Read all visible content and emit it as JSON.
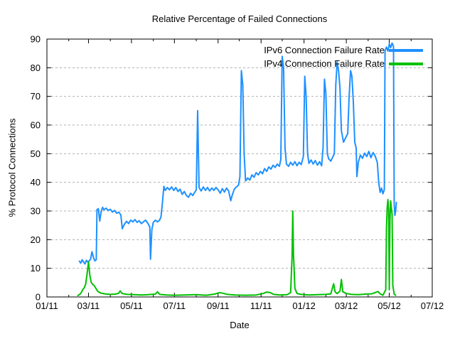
{
  "chart_data": {
    "type": "line",
    "title": "Relative Percentage of Failed Connections",
    "xlabel": "Date",
    "ylabel": "% Protocol Connections",
    "x_range": [
      "2011-01-01",
      "2012-07-01"
    ],
    "ylim": [
      0,
      90
    ],
    "y_ticks": [
      0,
      10,
      20,
      30,
      40,
      50,
      60,
      70,
      80,
      90
    ],
    "x_tick_labels": [
      "01/11",
      "03/11",
      "05/11",
      "07/11",
      "09/11",
      "11/11",
      "01/12",
      "03/12",
      "05/12",
      "07/12"
    ],
    "grid": "horizontal-dashed",
    "grid_color": "#b0b0b0",
    "legend_position": "top-right-inside",
    "series": [
      {
        "id": "ipv6",
        "name": "IPv6 Connection Failure Rate",
        "color": "#1e90ff",
        "points": [
          [
            "2011-02-16",
            12.5
          ],
          [
            "2011-02-18",
            11.8
          ],
          [
            "2011-02-20",
            13.0
          ],
          [
            "2011-02-22",
            12.2
          ],
          [
            "2011-02-24",
            11.5
          ],
          [
            "2011-02-26",
            12.8
          ],
          [
            "2011-02-28",
            12.2
          ],
          [
            "2011-03-02",
            12.6
          ],
          [
            "2011-03-04",
            13.2
          ],
          [
            "2011-03-06",
            15.8
          ],
          [
            "2011-03-08",
            13.8
          ],
          [
            "2011-03-10",
            12.6
          ],
          [
            "2011-03-12",
            13.0
          ],
          [
            "2011-03-13",
            30.5
          ],
          [
            "2011-03-15",
            30.8
          ],
          [
            "2011-03-17",
            26.5
          ],
          [
            "2011-03-19",
            29.8
          ],
          [
            "2011-03-21",
            31.3
          ],
          [
            "2011-03-23",
            30.4
          ],
          [
            "2011-03-26",
            31.0
          ],
          [
            "2011-03-29",
            30.2
          ],
          [
            "2011-04-01",
            30.6
          ],
          [
            "2011-04-04",
            29.6
          ],
          [
            "2011-04-07",
            30.2
          ],
          [
            "2011-04-10",
            29.2
          ],
          [
            "2011-04-13",
            29.6
          ],
          [
            "2011-04-16",
            28.6
          ],
          [
            "2011-04-18",
            23.8
          ],
          [
            "2011-04-21",
            25.4
          ],
          [
            "2011-04-24",
            26.4
          ],
          [
            "2011-04-27",
            25.6
          ],
          [
            "2011-04-30",
            26.8
          ],
          [
            "2011-05-03",
            26.2
          ],
          [
            "2011-05-06",
            27.0
          ],
          [
            "2011-05-09",
            26.0
          ],
          [
            "2011-05-12",
            26.6
          ],
          [
            "2011-05-15",
            25.6
          ],
          [
            "2011-05-18",
            26.2
          ],
          [
            "2011-05-21",
            26.8
          ],
          [
            "2011-05-24",
            25.8
          ],
          [
            "2011-05-27",
            24.5
          ],
          [
            "2011-05-28",
            13.2
          ],
          [
            "2011-05-30",
            23.5
          ],
          [
            "2011-06-01",
            26.0
          ],
          [
            "2011-06-04",
            26.8
          ],
          [
            "2011-06-07",
            26.2
          ],
          [
            "2011-06-10",
            26.8
          ],
          [
            "2011-06-12",
            28.0
          ],
          [
            "2011-06-14",
            33.0
          ],
          [
            "2011-06-16",
            38.6
          ],
          [
            "2011-06-18",
            37.2
          ],
          [
            "2011-06-21",
            38.2
          ],
          [
            "2011-06-24",
            37.4
          ],
          [
            "2011-06-27",
            38.4
          ],
          [
            "2011-06-30",
            37.2
          ],
          [
            "2011-07-03",
            38.2
          ],
          [
            "2011-07-06",
            36.8
          ],
          [
            "2011-07-09",
            37.6
          ],
          [
            "2011-07-12",
            35.8
          ],
          [
            "2011-07-15",
            36.8
          ],
          [
            "2011-07-18",
            35.4
          ],
          [
            "2011-07-21",
            34.8
          ],
          [
            "2011-07-24",
            36.2
          ],
          [
            "2011-07-27",
            35.4
          ],
          [
            "2011-07-30",
            36.6
          ],
          [
            "2011-08-01",
            37.4
          ],
          [
            "2011-08-03",
            65.0
          ],
          [
            "2011-08-05",
            38.2
          ],
          [
            "2011-08-08",
            37.0
          ],
          [
            "2011-08-11",
            38.4
          ],
          [
            "2011-08-14",
            37.2
          ],
          [
            "2011-08-17",
            38.2
          ],
          [
            "2011-08-20",
            37.0
          ],
          [
            "2011-08-23",
            38.0
          ],
          [
            "2011-08-26",
            37.2
          ],
          [
            "2011-08-29",
            38.2
          ],
          [
            "2011-09-01",
            37.4
          ],
          [
            "2011-09-04",
            36.2
          ],
          [
            "2011-09-07",
            37.8
          ],
          [
            "2011-09-10",
            36.6
          ],
          [
            "2011-09-13",
            38.0
          ],
          [
            "2011-09-16",
            37.0
          ],
          [
            "2011-09-19",
            33.6
          ],
          [
            "2011-09-21",
            35.5
          ],
          [
            "2011-09-24",
            37.6
          ],
          [
            "2011-09-27",
            38.4
          ],
          [
            "2011-09-30",
            39.0
          ],
          [
            "2011-10-02",
            42.0
          ],
          [
            "2011-10-04",
            79.0
          ],
          [
            "2011-10-06",
            74.0
          ],
          [
            "2011-10-08",
            50.0
          ],
          [
            "2011-10-10",
            40.5
          ],
          [
            "2011-10-13",
            41.5
          ],
          [
            "2011-10-16",
            40.8
          ],
          [
            "2011-10-19",
            42.6
          ],
          [
            "2011-10-22",
            41.8
          ],
          [
            "2011-10-25",
            43.4
          ],
          [
            "2011-10-28",
            42.6
          ],
          [
            "2011-10-31",
            43.8
          ],
          [
            "2011-11-03",
            43.0
          ],
          [
            "2011-11-06",
            44.8
          ],
          [
            "2011-11-09",
            43.8
          ],
          [
            "2011-11-12",
            45.4
          ],
          [
            "2011-11-15",
            44.6
          ],
          [
            "2011-11-18",
            46.0
          ],
          [
            "2011-11-21",
            45.2
          ],
          [
            "2011-11-24",
            46.4
          ],
          [
            "2011-11-27",
            45.6
          ],
          [
            "2011-11-29",
            48.0
          ],
          [
            "2011-12-01",
            84.0
          ],
          [
            "2011-12-03",
            80.0
          ],
          [
            "2011-12-05",
            52.0
          ],
          [
            "2011-12-07",
            46.4
          ],
          [
            "2011-12-10",
            45.6
          ],
          [
            "2011-12-13",
            47.0
          ],
          [
            "2011-12-16",
            46.0
          ],
          [
            "2011-12-19",
            47.2
          ],
          [
            "2011-12-22",
            45.8
          ],
          [
            "2011-12-25",
            47.0
          ],
          [
            "2011-12-28",
            46.2
          ],
          [
            "2011-12-31",
            49.0
          ],
          [
            "2012-01-02",
            77.0
          ],
          [
            "2012-01-04",
            70.0
          ],
          [
            "2012-01-06",
            50.0
          ],
          [
            "2012-01-08",
            46.6
          ],
          [
            "2012-01-11",
            47.8
          ],
          [
            "2012-01-14",
            46.4
          ],
          [
            "2012-01-17",
            47.6
          ],
          [
            "2012-01-20",
            46.0
          ],
          [
            "2012-01-23",
            47.2
          ],
          [
            "2012-01-26",
            45.8
          ],
          [
            "2012-01-28",
            52.0
          ],
          [
            "2012-01-30",
            76.0
          ],
          [
            "2012-02-01",
            71.0
          ],
          [
            "2012-02-03",
            50.0
          ],
          [
            "2012-02-05",
            48.2
          ],
          [
            "2012-02-08",
            47.4
          ],
          [
            "2012-02-11",
            49.0
          ],
          [
            "2012-02-13",
            50.0
          ],
          [
            "2012-02-15",
            74.0
          ],
          [
            "2012-02-17",
            82.0
          ],
          [
            "2012-02-19",
            79.0
          ],
          [
            "2012-02-21",
            73.0
          ],
          [
            "2012-02-23",
            58.0
          ],
          [
            "2012-02-26",
            54.0
          ],
          [
            "2012-02-29",
            55.5
          ],
          [
            "2012-03-03",
            57.0
          ],
          [
            "2012-03-05",
            70.0
          ],
          [
            "2012-03-07",
            79.0
          ],
          [
            "2012-03-09",
            77.0
          ],
          [
            "2012-03-11",
            68.0
          ],
          [
            "2012-03-13",
            54.0
          ],
          [
            "2012-03-15",
            52.0
          ],
          [
            "2012-03-16",
            42.0
          ],
          [
            "2012-03-18",
            47.0
          ],
          [
            "2012-03-21",
            49.5
          ],
          [
            "2012-03-24",
            48.4
          ],
          [
            "2012-03-27",
            50.2
          ],
          [
            "2012-03-30",
            49.0
          ],
          [
            "2012-04-02",
            50.8
          ],
          [
            "2012-04-05",
            48.6
          ],
          [
            "2012-04-08",
            50.4
          ],
          [
            "2012-04-11",
            49.2
          ],
          [
            "2012-04-14",
            47.0
          ],
          [
            "2012-04-16",
            40.0
          ],
          [
            "2012-04-18",
            36.5
          ],
          [
            "2012-04-20",
            38.0
          ],
          [
            "2012-04-22",
            36.0
          ],
          [
            "2012-04-24",
            37.5
          ],
          [
            "2012-04-25",
            86.0
          ],
          [
            "2012-04-27",
            87.2
          ],
          [
            "2012-04-29",
            85.8
          ],
          [
            "2012-05-01",
            88.3
          ],
          [
            "2012-05-03",
            87.0
          ],
          [
            "2012-05-05",
            88.6
          ],
          [
            "2012-05-07",
            87.4
          ],
          [
            "2012-05-08",
            32.0
          ],
          [
            "2012-05-09",
            28.5
          ],
          [
            "2012-05-10",
            30.0
          ],
          [
            "2012-05-11",
            33.0
          ]
        ]
      },
      {
        "id": "ipv4",
        "name": "IPv4 Connection Failure Rate",
        "color": "#00c000",
        "points": [
          [
            "2011-02-14",
            0.5
          ],
          [
            "2011-02-17",
            1.0
          ],
          [
            "2011-02-19",
            1.6
          ],
          [
            "2011-02-21",
            2.6
          ],
          [
            "2011-02-23",
            3.2
          ],
          [
            "2011-02-25",
            4.5
          ],
          [
            "2011-02-27",
            8.0
          ],
          [
            "2011-03-01",
            12.2
          ],
          [
            "2011-03-03",
            7.5
          ],
          [
            "2011-03-05",
            5.0
          ],
          [
            "2011-03-07",
            4.4
          ],
          [
            "2011-03-09",
            4.0
          ],
          [
            "2011-03-11",
            3.2
          ],
          [
            "2011-03-14",
            2.0
          ],
          [
            "2011-03-18",
            1.4
          ],
          [
            "2011-03-24",
            1.1
          ],
          [
            "2011-04-01",
            0.9
          ],
          [
            "2011-04-08",
            1.0
          ],
          [
            "2011-04-13",
            1.3
          ],
          [
            "2011-04-15",
            2.1
          ],
          [
            "2011-04-18",
            1.2
          ],
          [
            "2011-04-25",
            0.9
          ],
          [
            "2011-05-05",
            0.8
          ],
          [
            "2011-05-15",
            0.7
          ],
          [
            "2011-05-25",
            0.8
          ],
          [
            "2011-06-04",
            1.0
          ],
          [
            "2011-06-07",
            1.8
          ],
          [
            "2011-06-10",
            0.9
          ],
          [
            "2011-06-20",
            0.7
          ],
          [
            "2011-07-01",
            0.6
          ],
          [
            "2011-07-15",
            0.7
          ],
          [
            "2011-08-01",
            0.8
          ],
          [
            "2011-08-15",
            0.6
          ],
          [
            "2011-08-27",
            1.0
          ],
          [
            "2011-09-03",
            1.5
          ],
          [
            "2011-09-08",
            1.3
          ],
          [
            "2011-09-14",
            0.9
          ],
          [
            "2011-09-25",
            0.7
          ],
          [
            "2011-10-10",
            0.6
          ],
          [
            "2011-10-25",
            0.7
          ],
          [
            "2011-11-04",
            1.2
          ],
          [
            "2011-11-09",
            1.7
          ],
          [
            "2011-11-14",
            1.5
          ],
          [
            "2011-11-19",
            0.9
          ],
          [
            "2011-11-28",
            0.7
          ],
          [
            "2011-12-08",
            0.8
          ],
          [
            "2011-12-13",
            1.5
          ],
          [
            "2011-12-15",
            14.0
          ],
          [
            "2011-12-16",
            30.0
          ],
          [
            "2011-12-17",
            15.0
          ],
          [
            "2011-12-19",
            3.0
          ],
          [
            "2011-12-22",
            1.2
          ],
          [
            "2011-12-28",
            0.9
          ],
          [
            "2012-01-08",
            0.7
          ],
          [
            "2012-01-20",
            0.8
          ],
          [
            "2012-02-01",
            0.9
          ],
          [
            "2012-02-08",
            1.1
          ],
          [
            "2012-02-12",
            4.6
          ],
          [
            "2012-02-14",
            1.8
          ],
          [
            "2012-02-17",
            1.2
          ],
          [
            "2012-02-21",
            2.0
          ],
          [
            "2012-02-23",
            6.1
          ],
          [
            "2012-02-25",
            1.8
          ],
          [
            "2012-03-01",
            1.2
          ],
          [
            "2012-03-08",
            0.9
          ],
          [
            "2012-03-18",
            0.8
          ],
          [
            "2012-03-28",
            1.0
          ],
          [
            "2012-04-06",
            1.1
          ],
          [
            "2012-04-12",
            1.6
          ],
          [
            "2012-04-15",
            1.9
          ],
          [
            "2012-04-18",
            1.1
          ],
          [
            "2012-04-22",
            0.6
          ],
          [
            "2012-04-26",
            2.5
          ],
          [
            "2012-04-27",
            24.0
          ],
          [
            "2012-04-28",
            31.0
          ],
          [
            "2012-04-29",
            34.0
          ],
          [
            "2012-04-30",
            30.5
          ],
          [
            "2012-05-01",
            2.5
          ],
          [
            "2012-05-02",
            27.0
          ],
          [
            "2012-05-03",
            33.5
          ],
          [
            "2012-05-04",
            31.0
          ],
          [
            "2012-05-05",
            29.0
          ],
          [
            "2012-05-06",
            4.0
          ],
          [
            "2012-05-08",
            1.0
          ],
          [
            "2012-05-10",
            0.6
          ]
        ]
      }
    ]
  }
}
